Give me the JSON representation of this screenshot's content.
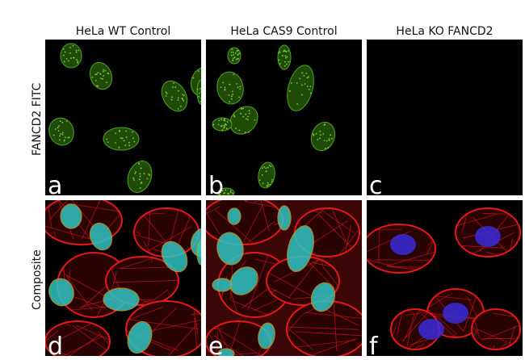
{
  "columns": [
    "HeLa WT Control",
    "HeLa CAS9 Control",
    "HeLa KO FANCD2"
  ],
  "rows": [
    "FANCD2  FITC",
    "Composite"
  ],
  "panels": [
    {
      "label": "a",
      "row": 0,
      "col": 0,
      "stain": "FITC"
    },
    {
      "label": "b",
      "row": 0,
      "col": 1,
      "stain": "FITC"
    },
    {
      "label": "c",
      "row": 0,
      "col": 2,
      "stain": "FITC"
    },
    {
      "label": "d",
      "row": 1,
      "col": 0,
      "stain": "composite"
    },
    {
      "label": "e",
      "row": 1,
      "col": 1,
      "stain": "composite"
    },
    {
      "label": "f",
      "row": 1,
      "col": 2,
      "stain": "composite"
    }
  ],
  "colors": {
    "fitc": "#4fa81a",
    "actin": "#e8161a",
    "nucleus": "#2ec4c4",
    "dapi": "#3a2ad8"
  }
}
